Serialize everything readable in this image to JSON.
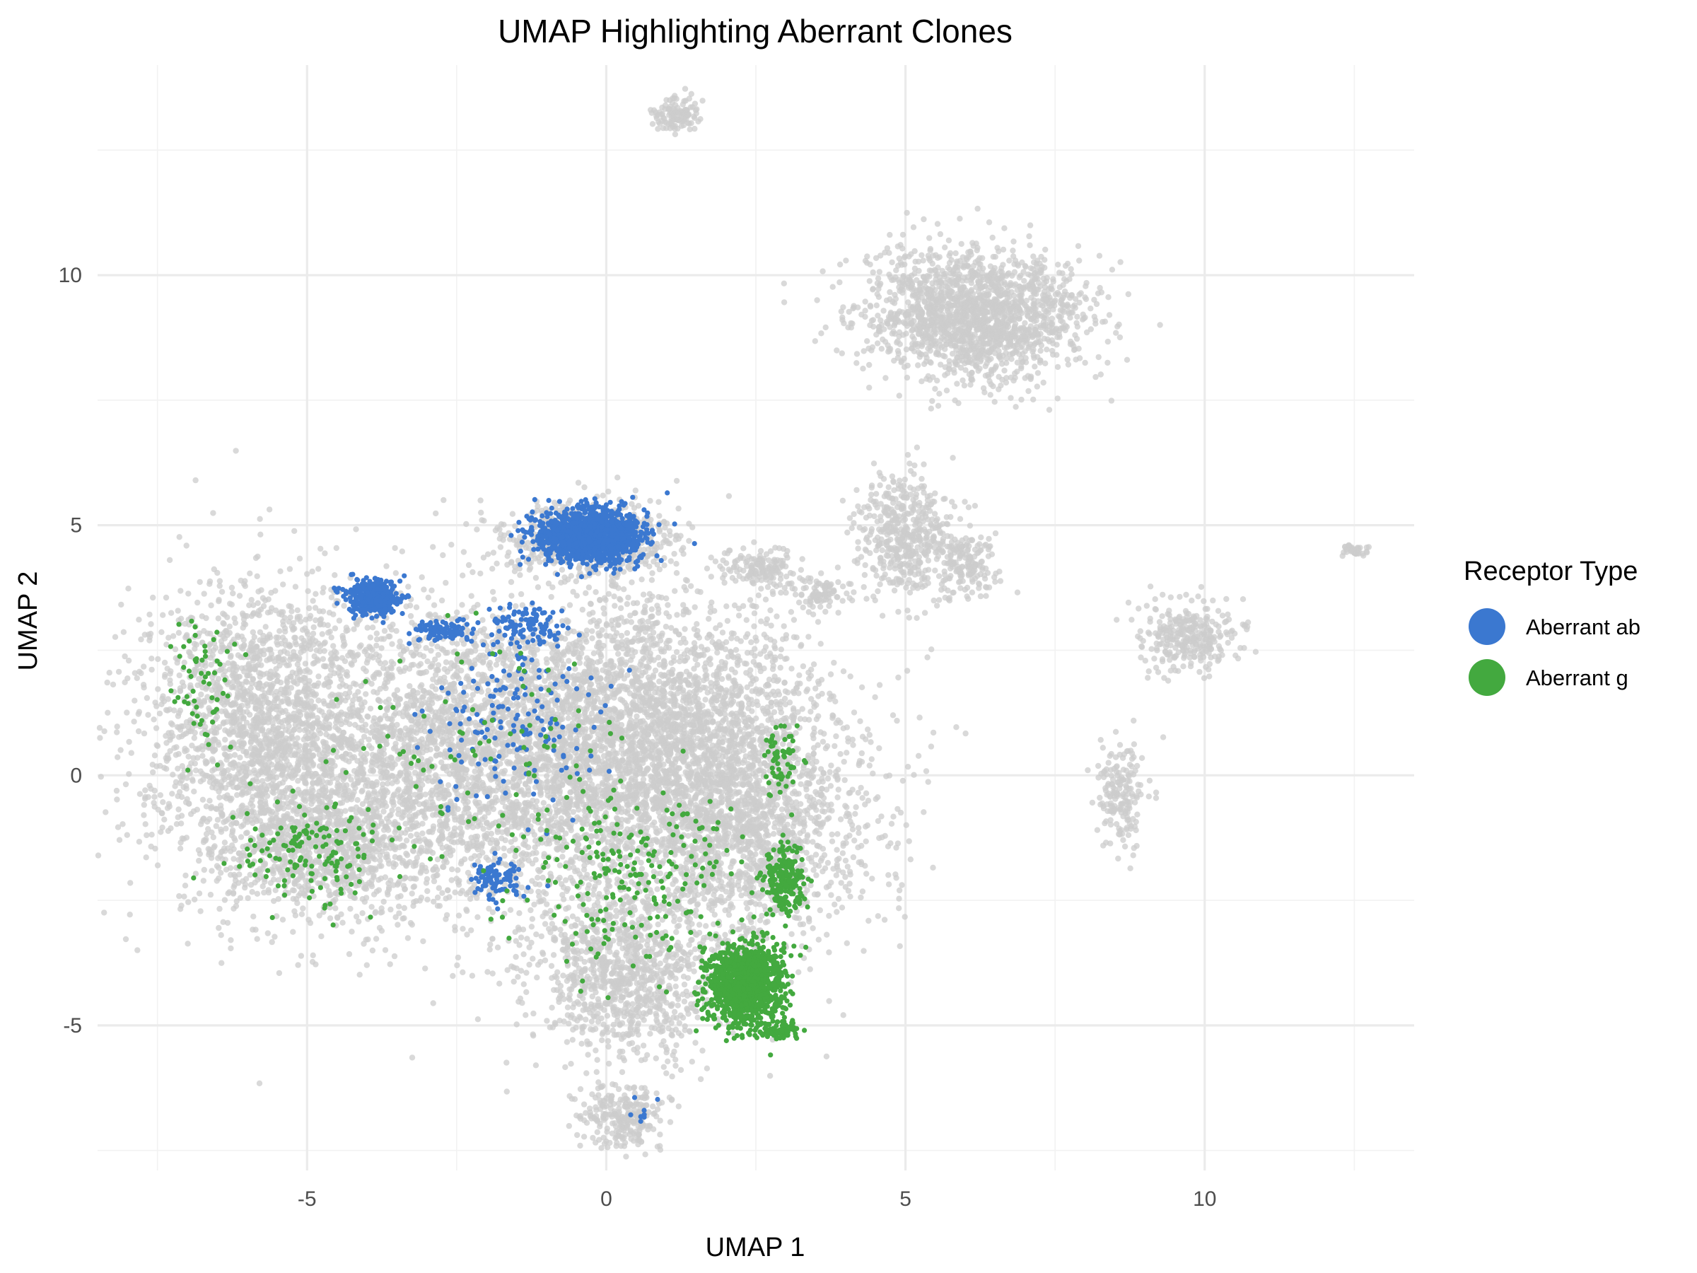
{
  "chart_data": {
    "type": "scatter",
    "title": "UMAP Highlighting Aberrant Clones",
    "xlabel": "UMAP 1",
    "ylabel": "UMAP 2",
    "xlim": [
      -8.5,
      13.5
    ],
    "ylim": [
      -7.9,
      14.2
    ],
    "x_ticks": [
      -5,
      0,
      5,
      10
    ],
    "x_tick_labels": [
      "-5",
      "0",
      "5",
      "10"
    ],
    "y_ticks": [
      -5,
      0,
      5,
      10
    ],
    "y_tick_labels": [
      "-5",
      "0",
      "5",
      "10"
    ],
    "grid": true,
    "legend": {
      "title": "Receptor Type",
      "placement": "right",
      "entries": [
        {
          "name": "Aberrant ab",
          "color": "#3b78d0"
        },
        {
          "name": "Aberrant g",
          "color": "#43a93f"
        }
      ]
    },
    "background_color": "#cccccc",
    "background_regions": [
      {
        "cx": -2.0,
        "cy": 0.3,
        "sx": 3.5,
        "sy": 2.2,
        "n": 5000
      },
      {
        "cx": -5.8,
        "cy": 1.2,
        "sx": 1.3,
        "sy": 2.0,
        "n": 1400
      },
      {
        "cx": -4.8,
        "cy": -1.5,
        "sx": 1.2,
        "sy": 0.8,
        "n": 700
      },
      {
        "cx": 1.0,
        "cy": 1.0,
        "sx": 1.8,
        "sy": 1.8,
        "n": 1700
      },
      {
        "cx": 2.3,
        "cy": -1.0,
        "sx": 1.5,
        "sy": 1.8,
        "n": 1600
      },
      {
        "cx": 0.3,
        "cy": -4.0,
        "sx": 1.1,
        "sy": 1.2,
        "n": 1000
      },
      {
        "cx": 0.3,
        "cy": -6.8,
        "sx": 0.5,
        "sy": 0.45,
        "n": 250
      },
      {
        "cx": -0.3,
        "cy": 4.7,
        "sx": 1.0,
        "sy": 0.55,
        "n": 700
      },
      {
        "cx": 2.6,
        "cy": 4.1,
        "sx": 0.5,
        "sy": 0.3,
        "n": 150
      },
      {
        "cx": 3.6,
        "cy": 3.6,
        "sx": 0.3,
        "sy": 0.25,
        "n": 80
      },
      {
        "cx": 6.2,
        "cy": 9.2,
        "sx": 1.3,
        "sy": 0.9,
        "n": 1800
      },
      {
        "cx": 5.0,
        "cy": 4.8,
        "sx": 0.6,
        "sy": 0.9,
        "n": 500
      },
      {
        "cx": 6.0,
        "cy": 4.2,
        "sx": 0.35,
        "sy": 0.45,
        "n": 160
      },
      {
        "cx": 1.2,
        "cy": 13.2,
        "sx": 0.3,
        "sy": 0.25,
        "n": 120
      },
      {
        "cx": 9.8,
        "cy": 2.8,
        "sx": 0.6,
        "sy": 0.5,
        "n": 300
      },
      {
        "cx": 8.6,
        "cy": -0.4,
        "sx": 0.3,
        "sy": 0.7,
        "n": 180
      },
      {
        "cx": 12.5,
        "cy": 4.5,
        "sx": 0.15,
        "sy": 0.08,
        "n": 40
      }
    ],
    "series": [
      {
        "name": "Aberrant ab",
        "color": "#3b78d0",
        "clusters": [
          {
            "cx": -0.3,
            "cy": 4.8,
            "sx": 0.6,
            "sy": 0.38,
            "n": 1400
          },
          {
            "cx": -3.9,
            "cy": 3.55,
            "sx": 0.3,
            "sy": 0.25,
            "n": 380
          },
          {
            "cx": -2.7,
            "cy": 2.9,
            "sx": 0.4,
            "sy": 0.15,
            "n": 90
          },
          {
            "cx": -1.3,
            "cy": 3.0,
            "sx": 0.5,
            "sy": 0.3,
            "n": 100
          },
          {
            "cx": -1.8,
            "cy": -2.1,
            "sx": 0.3,
            "sy": 0.3,
            "n": 90
          },
          {
            "cx": -1.5,
            "cy": 1.0,
            "sx": 1.0,
            "sy": 1.3,
            "n": 170
          },
          {
            "cx": 0.6,
            "cy": -6.6,
            "sx": 0.15,
            "sy": 0.3,
            "n": 8
          }
        ]
      },
      {
        "name": "Aberrant g",
        "color": "#43a93f",
        "clusters": [
          {
            "cx": 2.3,
            "cy": -4.2,
            "sx": 0.45,
            "sy": 0.6,
            "n": 1100
          },
          {
            "cx": 3.0,
            "cy": -2.1,
            "sx": 0.25,
            "sy": 0.5,
            "n": 200
          },
          {
            "cx": 2.9,
            "cy": 0.3,
            "sx": 0.2,
            "sy": 0.6,
            "n": 60
          },
          {
            "cx": 2.9,
            "cy": -5.1,
            "sx": 0.25,
            "sy": 0.15,
            "n": 80
          },
          {
            "cx": -5.0,
            "cy": -1.5,
            "sx": 0.9,
            "sy": 0.7,
            "n": 150
          },
          {
            "cx": 0.5,
            "cy": -2.0,
            "sx": 1.3,
            "sy": 1.3,
            "n": 220
          },
          {
            "cx": -6.8,
            "cy": 1.8,
            "sx": 0.3,
            "sy": 1.0,
            "n": 60
          },
          {
            "cx": -2.0,
            "cy": 0.5,
            "sx": 1.5,
            "sy": 1.5,
            "n": 90
          }
        ]
      }
    ]
  }
}
